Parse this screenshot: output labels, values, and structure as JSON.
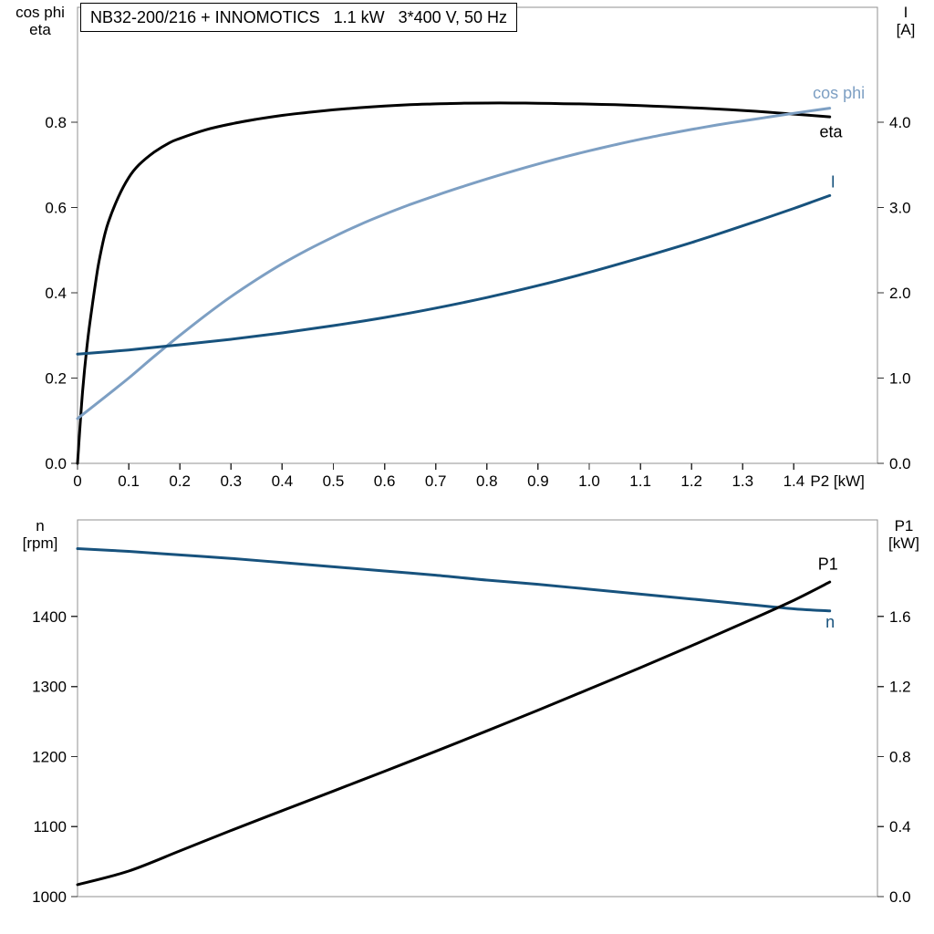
{
  "title_box": {
    "text": "NB32-200/216 + INNOMOTICS   1.1 kW   3*400 V, 50 Hz"
  },
  "axis_corner_labels": {
    "top_left_line1": "cos phi",
    "top_left_line2": "eta",
    "top_right_line1": "I",
    "top_right_line2": "[A]",
    "bottom_left_line1": "n",
    "bottom_left_line2": "[rpm]",
    "bottom_right_line1": "P1",
    "bottom_right_line2": "[kW]"
  },
  "colors": {
    "eta": "#000000",
    "cos_phi": "#7D9FC3",
    "current": "#17527D",
    "speed": "#17527D",
    "p1": "#000000",
    "frame": "#909090",
    "tick": "#303030",
    "text": "#000000"
  },
  "chart_data": [
    {
      "type": "line",
      "name": "motor-electrical-curves",
      "title": "NB32-200/216 + INNOMOTICS   1.1 kW   3*400 V, 50 Hz",
      "x_axis": {
        "label": "P2 [kW]",
        "title": "P2 [kW]",
        "min": 0,
        "max": 1.5633,
        "tick_values": [
          0,
          0.1,
          0.2,
          0.3,
          0.4,
          0.5,
          0.6,
          0.7,
          0.8,
          0.9,
          1.0,
          1.1,
          1.2,
          1.3,
          1.4
        ],
        "tick_labels": [
          "0",
          "0.1",
          "0.2",
          "0.3",
          "0.4",
          "0.5",
          "0.6",
          "0.7",
          "0.8",
          "0.9",
          "1.0",
          "1.1",
          "1.2",
          "1.3",
          "1.4"
        ]
      },
      "y_left": {
        "label": "cos phi / eta",
        "min": 0,
        "max": 1.0695,
        "tick_values": [
          0.0,
          0.2,
          0.4,
          0.6,
          0.8
        ],
        "tick_labels": [
          "0.0",
          "0.2",
          "0.4",
          "0.6",
          "0.8"
        ]
      },
      "y_right": {
        "label": "I [A]",
        "min": 0,
        "max": 5.348,
        "tick_values": [
          0.0,
          1.0,
          2.0,
          3.0,
          4.0
        ],
        "tick_labels": [
          "0.0",
          "1.0",
          "2.0",
          "3.0",
          "4.0"
        ]
      },
      "series": [
        {
          "name": "eta",
          "axis": "left",
          "color": "#000000",
          "points": [
            [
              0,
              0
            ],
            [
              0.01,
              0.17
            ],
            [
              0.02,
              0.29
            ],
            [
              0.03,
              0.38
            ],
            [
              0.04,
              0.46
            ],
            [
              0.05,
              0.52
            ],
            [
              0.06,
              0.565
            ],
            [
              0.08,
              0.625
            ],
            [
              0.1,
              0.67
            ],
            [
              0.12,
              0.7
            ],
            [
              0.15,
              0.73
            ],
            [
              0.18,
              0.752
            ],
            [
              0.2,
              0.762
            ],
            [
              0.25,
              0.782
            ],
            [
              0.3,
              0.796
            ],
            [
              0.35,
              0.807
            ],
            [
              0.4,
              0.816
            ],
            [
              0.45,
              0.823
            ],
            [
              0.5,
              0.829
            ],
            [
              0.55,
              0.834
            ],
            [
              0.6,
              0.838
            ],
            [
              0.65,
              0.841
            ],
            [
              0.7,
              0.843
            ],
            [
              0.75,
              0.8445
            ],
            [
              0.8,
              0.845
            ],
            [
              0.85,
              0.845
            ],
            [
              0.9,
              0.8445
            ],
            [
              0.95,
              0.8435
            ],
            [
              1.0,
              0.8425
            ],
            [
              1.05,
              0.841
            ],
            [
              1.1,
              0.839
            ],
            [
              1.15,
              0.8365
            ],
            [
              1.2,
              0.834
            ],
            [
              1.25,
              0.831
            ],
            [
              1.3,
              0.8275
            ],
            [
              1.35,
              0.8235
            ],
            [
              1.4,
              0.819
            ],
            [
              1.47,
              0.8125
            ]
          ]
        },
        {
          "name": "cos phi",
          "axis": "left",
          "color": "#7D9FC3",
          "points": [
            [
              0,
              0.105
            ],
            [
              0.05,
              0.152
            ],
            [
              0.1,
              0.2
            ],
            [
              0.15,
              0.251
            ],
            [
              0.2,
              0.3
            ],
            [
              0.25,
              0.347
            ],
            [
              0.3,
              0.391
            ],
            [
              0.35,
              0.431
            ],
            [
              0.4,
              0.468
            ],
            [
              0.45,
              0.501
            ],
            [
              0.5,
              0.531
            ],
            [
              0.55,
              0.559
            ],
            [
              0.6,
              0.584
            ],
            [
              0.65,
              0.607
            ],
            [
              0.7,
              0.628
            ],
            [
              0.75,
              0.648
            ],
            [
              0.8,
              0.667
            ],
            [
              0.85,
              0.685
            ],
            [
              0.9,
              0.702
            ],
            [
              0.95,
              0.718
            ],
            [
              1.0,
              0.733
            ],
            [
              1.05,
              0.747
            ],
            [
              1.1,
              0.76
            ],
            [
              1.15,
              0.772
            ],
            [
              1.2,
              0.783
            ],
            [
              1.25,
              0.7935
            ],
            [
              1.3,
              0.803
            ],
            [
              1.35,
              0.812
            ],
            [
              1.4,
              0.821
            ],
            [
              1.47,
              0.833
            ]
          ]
        },
        {
          "name": "I",
          "axis": "right",
          "color": "#17527D",
          "points": [
            [
              0,
              1.28
            ],
            [
              0.1,
              1.33
            ],
            [
              0.2,
              1.39
            ],
            [
              0.3,
              1.455
            ],
            [
              0.4,
              1.53
            ],
            [
              0.5,
              1.615
            ],
            [
              0.6,
              1.71
            ],
            [
              0.7,
              1.82
            ],
            [
              0.8,
              1.945
            ],
            [
              0.9,
              2.085
            ],
            [
              1.0,
              2.24
            ],
            [
              1.1,
              2.41
            ],
            [
              1.2,
              2.59
            ],
            [
              1.3,
              2.785
            ],
            [
              1.4,
              2.99
            ],
            [
              1.47,
              3.14
            ]
          ]
        }
      ],
      "annotations": [
        {
          "text": "cos phi",
          "x": 1.437,
          "y": 0.868,
          "axis": "left",
          "color": "#7D9FC3"
        },
        {
          "text": "eta",
          "x": 1.45,
          "y": 0.778,
          "axis": "left",
          "color": "#000000"
        },
        {
          "text": "I",
          "x": 1.472,
          "y": 3.3,
          "axis": "right",
          "color": "#17527D"
        }
      ]
    },
    {
      "type": "line",
      "name": "motor-speed-power-curves",
      "title": "",
      "x_axis": {
        "label": "P2 [kW]",
        "title": "",
        "min": 0,
        "max": 1.5633,
        "tick_values": [],
        "tick_labels": []
      },
      "y_left": {
        "label": "n [rpm]",
        "min": 1000,
        "max": 1538,
        "tick_values": [
          1000,
          1100,
          1200,
          1300,
          1400
        ],
        "tick_labels": [
          "1000",
          "1100",
          "1200",
          "1300",
          "1400"
        ]
      },
      "y_right": {
        "label": "P1 [kW]",
        "min": 0,
        "max": 2.152,
        "tick_values": [
          0.0,
          0.4,
          0.8,
          1.2,
          1.6
        ],
        "tick_labels": [
          "0.0",
          "0.4",
          "0.8",
          "1.2",
          "1.6"
        ]
      },
      "series": [
        {
          "name": "n",
          "axis": "left",
          "color": "#17527D",
          "points": [
            [
              0,
              1497
            ],
            [
              0.1,
              1493
            ],
            [
              0.2,
              1488
            ],
            [
              0.3,
              1483
            ],
            [
              0.4,
              1477
            ],
            [
              0.5,
              1471
            ],
            [
              0.6,
              1465
            ],
            [
              0.7,
              1459
            ],
            [
              0.8,
              1452
            ],
            [
              0.9,
              1446
            ],
            [
              1.0,
              1439
            ],
            [
              1.1,
              1432
            ],
            [
              1.2,
              1425
            ],
            [
              1.3,
              1418
            ],
            [
              1.4,
              1411
            ],
            [
              1.47,
              1408
            ]
          ]
        },
        {
          "name": "P1",
          "axis": "right",
          "color": "#000000",
          "points": [
            [
              0,
              0.068
            ],
            [
              0.1,
              0.146
            ],
            [
              0.2,
              0.261
            ],
            [
              0.3,
              0.378
            ],
            [
              0.4,
              0.491
            ],
            [
              0.5,
              0.603
            ],
            [
              0.6,
              0.716
            ],
            [
              0.7,
              0.83
            ],
            [
              0.8,
              0.947
            ],
            [
              0.9,
              1.065
            ],
            [
              1.0,
              1.186
            ],
            [
              1.1,
              1.308
            ],
            [
              1.2,
              1.433
            ],
            [
              1.3,
              1.561
            ],
            [
              1.4,
              1.693
            ],
            [
              1.47,
              1.797
            ]
          ]
        }
      ],
      "annotations": [
        {
          "text": "P1",
          "x": 1.447,
          "y": 1.9,
          "axis": "right",
          "color": "#000000"
        },
        {
          "text": "n",
          "x": 1.462,
          "y": 1392,
          "axis": "left",
          "color": "#17527D"
        }
      ]
    }
  ]
}
